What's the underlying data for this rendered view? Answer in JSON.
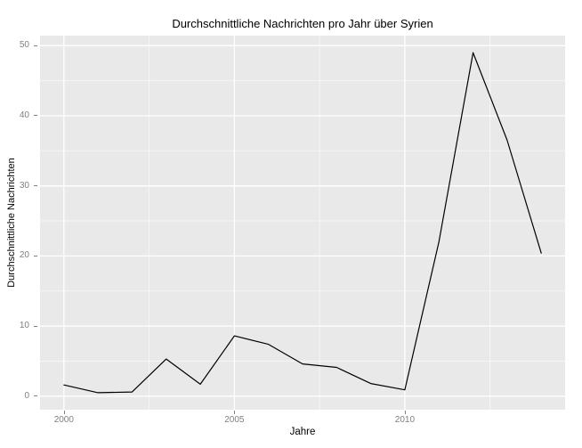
{
  "chart_data": {
    "type": "line",
    "title": "Durchschnittliche Nachrichten pro Jahr über Syrien",
    "xlabel": "Jahre",
    "ylabel": "Durchschnittliche Nachrichten",
    "x": [
      2000,
      2001,
      2002,
      2003,
      2004,
      2005,
      2006,
      2007,
      2008,
      2009,
      2010,
      2011,
      2012,
      2013,
      2014
    ],
    "values": [
      1.6,
      0.5,
      0.6,
      5.3,
      1.7,
      8.6,
      7.4,
      4.6,
      4.1,
      1.8,
      0.9,
      22.0,
      49.0,
      36.5,
      20.4
    ],
    "x_ticks": [
      2000,
      2005,
      2010
    ],
    "y_ticks": [
      0,
      10,
      20,
      30,
      40,
      50
    ],
    "x_minor_ticks": [
      2002.5,
      2007.5,
      2012.5
    ],
    "y_minor_ticks": [
      5,
      15,
      25,
      35,
      45
    ],
    "xlim": [
      1999.3,
      2014.7
    ],
    "ylim": [
      -1.93,
      51.43
    ],
    "grid": true,
    "legend_position": "none",
    "line_color": "#000000",
    "panel_bg": "#E9E9E9",
    "grid_major_color": "#FFFFFF",
    "grid_minor_color": "rgba(255,255,255,0.6)",
    "axis_text_color": "#7F7F7F",
    "tick_mark_color": "#7F7F7F"
  }
}
